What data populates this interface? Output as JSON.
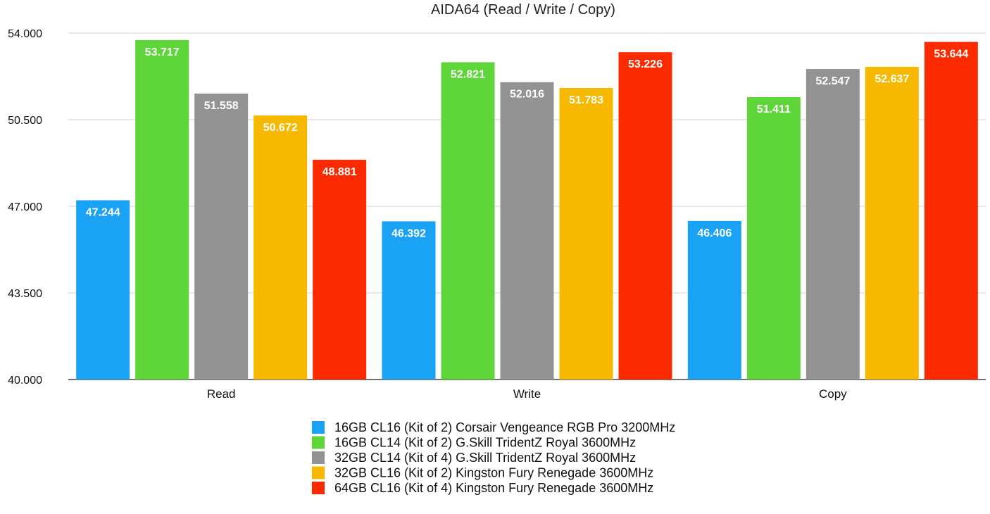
{
  "chart_data": {
    "type": "bar",
    "title": "AIDA64 (Read / Write / Copy)",
    "categories": [
      "Read",
      "Write",
      "Copy"
    ],
    "ylim": [
      40.0,
      54.0
    ],
    "yticks": [
      "40.000",
      "43.500",
      "47.000",
      "50.500",
      "54.000"
    ],
    "grid": true,
    "legend_position": "bottom",
    "series": [
      {
        "name": "16GB CL16 (Kit of 2) Corsair Vengeance RGB Pro 3200MHz",
        "color": "#1aa3f5",
        "values": [
          47.244,
          46.392,
          46.406
        ],
        "labels": [
          "47.244",
          "46.392",
          "46.406"
        ]
      },
      {
        "name": "16GB CL14 (Kit of 2) G.Skill TridentZ Royal 3600MHz",
        "color": "#5ed63a",
        "values": [
          53.717,
          52.821,
          51.411
        ],
        "labels": [
          "53.717",
          "52.821",
          "51.411"
        ]
      },
      {
        "name": "32GB CL14 (Kit of 4) G.Skill TridentZ Royal 3600MHz",
        "color": "#939393",
        "values": [
          51.558,
          52.016,
          52.547
        ],
        "labels": [
          "51.558",
          "52.016",
          "52.547"
        ]
      },
      {
        "name": "32GB CL16 (Kit of 2) Kingston Fury Renegade 3600MHz",
        "color": "#f7b800",
        "values": [
          50.672,
          51.783,
          52.637
        ],
        "labels": [
          "50.672",
          "51.783",
          "52.637"
        ]
      },
      {
        "name": "64GB CL16 (Kit of 4) Kingston Fury Renegade 3600MHz",
        "color": "#fb2a00",
        "values": [
          48.881,
          53.226,
          53.644
        ],
        "labels": [
          "48.881",
          "53.226",
          "53.644"
        ]
      }
    ]
  }
}
